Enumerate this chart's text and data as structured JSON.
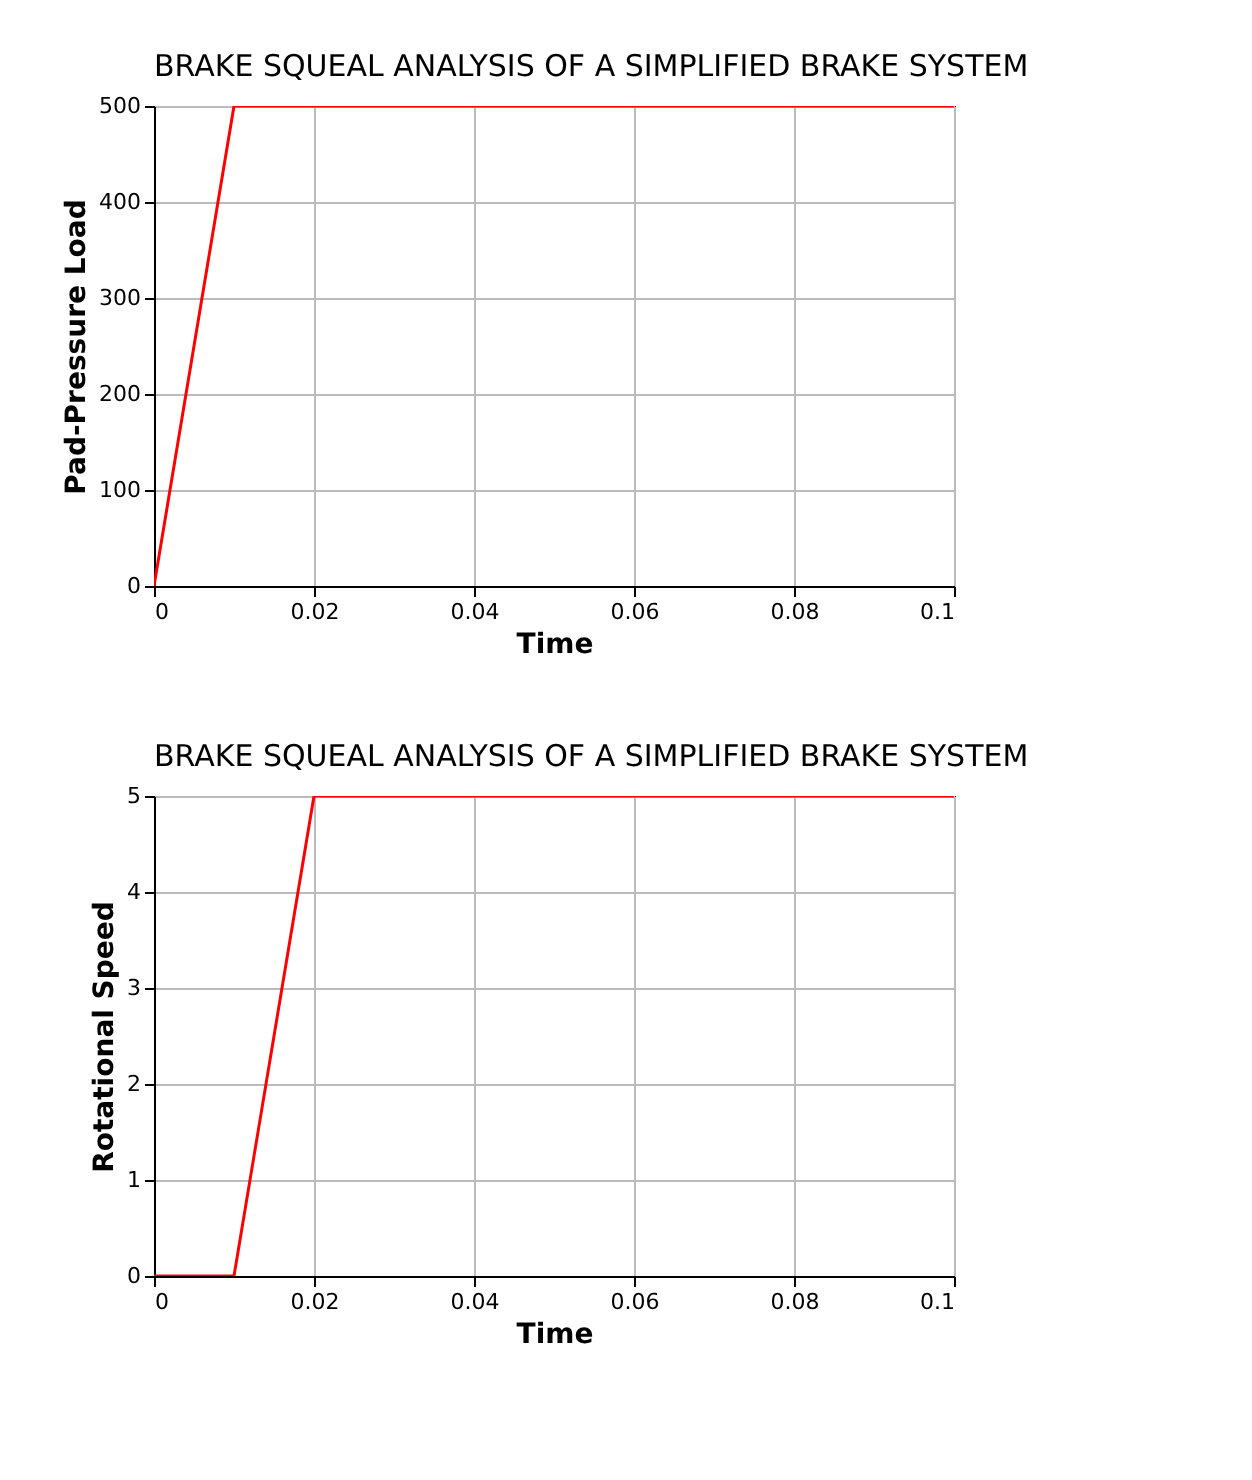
{
  "chart_data": [
    {
      "type": "line",
      "title": "BRAKE SQUEAL ANALYSIS OF A SIMPLIFIED BRAKE SYSTEM",
      "xlabel": "Time",
      "ylabel": "Pad-Pressure Load",
      "x": [
        0,
        0.01,
        0.1
      ],
      "series": [
        {
          "color": "#ff0000",
          "values": [
            0,
            500,
            500
          ]
        }
      ],
      "xlim": [
        0,
        0.1
      ],
      "xticks": [
        0,
        0.02,
        0.04,
        0.06,
        0.08,
        0.1
      ],
      "ylim": [
        0,
        500
      ],
      "yticks": [
        0,
        100,
        200,
        300,
        400,
        500
      ],
      "grid": true
    },
    {
      "type": "line",
      "title": "BRAKE SQUEAL ANALYSIS OF A SIMPLIFIED BRAKE SYSTEM",
      "xlabel": "Time",
      "ylabel": "Rotational Speed",
      "x": [
        0,
        0.01,
        0.02,
        0.1
      ],
      "series": [
        {
          "color": "#ff0000",
          "values": [
            0,
            0,
            5,
            5
          ]
        }
      ],
      "xlim": [
        0,
        0.1
      ],
      "xticks": [
        0,
        0.02,
        0.04,
        0.06,
        0.08,
        0.1
      ],
      "ylim": [
        0,
        5
      ],
      "yticks": [
        0,
        1,
        2,
        3,
        4,
        5
      ],
      "grid": true
    }
  ]
}
